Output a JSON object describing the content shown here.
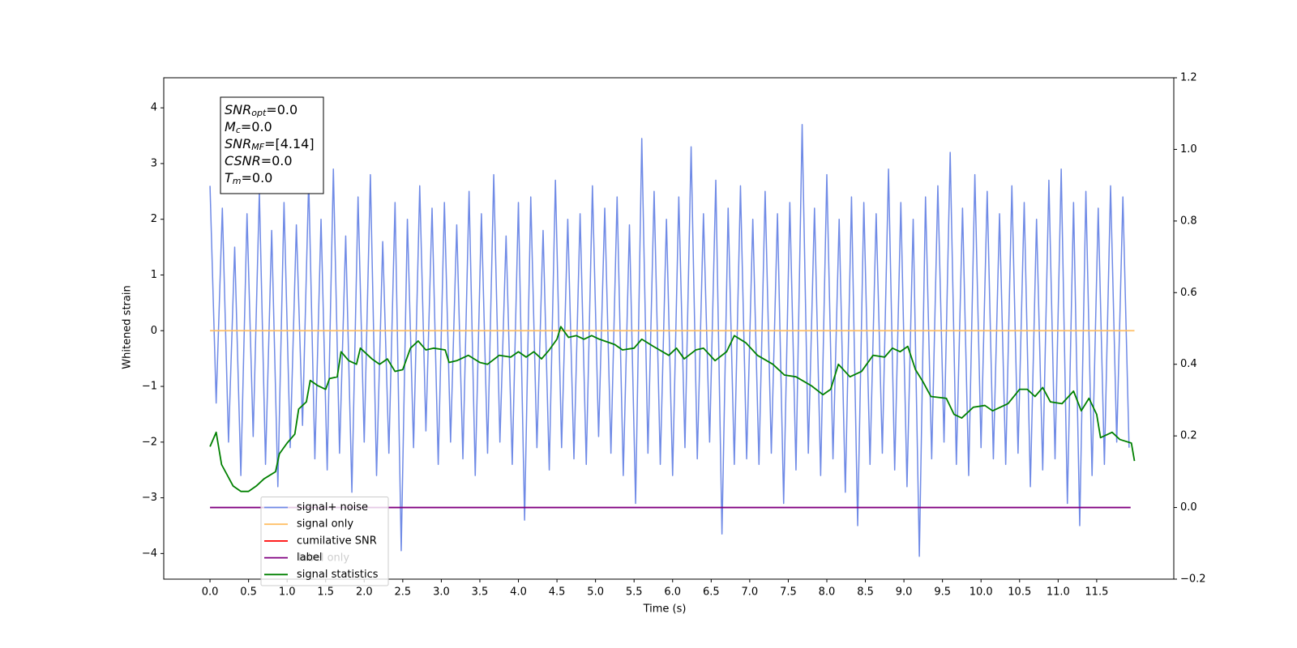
{
  "chart_data": {
    "type": "line",
    "xlabel": "Time (s)",
    "ylabel": "Whitened strain",
    "xlim": [
      -0.6,
      12.5
    ],
    "ylim": [
      -4.46,
      4.54
    ],
    "y2lim": [
      -0.2,
      1.2
    ],
    "xticks": [
      {
        "value": 0,
        "label": "0.0"
      },
      0.5,
      {
        "value": 1,
        "label": "1.0"
      },
      1.5,
      {
        "value": 2,
        "label": "2.0"
      },
      2.5,
      {
        "value": 3,
        "label": "3.0"
      },
      3.5,
      {
        "value": 4,
        "label": "4.0"
      },
      4.5,
      {
        "value": 5,
        "label": "5.0"
      },
      5.5,
      {
        "value": 6,
        "label": "6.0"
      },
      6.5,
      {
        "value": 7,
        "label": "7.0"
      },
      7.5,
      {
        "value": 8,
        "label": "8.0"
      },
      8.5,
      {
        "value": 9,
        "label": "9.0"
      },
      9.5,
      {
        "value": 10,
        "label": "10.0"
      },
      10.5,
      {
        "value": 11,
        "label": "11.0"
      },
      11.5
    ],
    "yticks": [
      {
        "value": -4,
        "label": "−4"
      },
      {
        "value": -3,
        "label": "−3"
      },
      {
        "value": -2,
        "label": "−2"
      },
      {
        "value": -1,
        "label": "−1"
      },
      0,
      1,
      2,
      3,
      4
    ],
    "y2ticks": [
      {
        "value": -0.2,
        "label": "−0.2"
      },
      {
        "value": 0,
        "label": "0.0"
      },
      0.2,
      0.4,
      0.6,
      0.8,
      {
        "value": 1,
        "label": "1.0"
      },
      1.2
    ],
    "grid": false,
    "legend": "lower left",
    "annotation_box": [
      {
        "main": "SNR",
        "sub": "opt",
        "rest": "=0.0"
      },
      {
        "main": "M",
        "sub": "c",
        "rest": "=0.0"
      },
      {
        "main": "SNR",
        "sub": "MF",
        "rest": "=[4.14]"
      },
      {
        "main": "CSNR",
        "rest": "=0.0"
      },
      {
        "main": "T",
        "sub": "m",
        "rest": "=0.0"
      }
    ],
    "hidden_text": "label only",
    "series": [
      {
        "name": "signal+ noise",
        "color": "#6f8ae6",
        "x": [
          0,
          0.08,
          0.16,
          0.24,
          0.32,
          0.4,
          0.48,
          0.56,
          0.64,
          0.72,
          0.8,
          0.88,
          0.96,
          1.04,
          1.12,
          1.2,
          1.28,
          1.36,
          1.44,
          1.52,
          1.6,
          1.68,
          1.76,
          1.84,
          1.92,
          2,
          2.08,
          2.16,
          2.24,
          2.32,
          2.4,
          2.48,
          2.56,
          2.64,
          2.72,
          2.8,
          2.88,
          2.96,
          3.04,
          3.12,
          3.2,
          3.28,
          3.36,
          3.44,
          3.52,
          3.6,
          3.68,
          3.76,
          3.84,
          3.92,
          4,
          4.08,
          4.16,
          4.24,
          4.32,
          4.4,
          4.48,
          4.56,
          4.64,
          4.72,
          4.8,
          4.88,
          4.96,
          5.04,
          5.12,
          5.2,
          5.28,
          5.36,
          5.44,
          5.52,
          5.6,
          5.68,
          5.76,
          5.84,
          5.92,
          6,
          6.08,
          6.16,
          6.24,
          6.32,
          6.4,
          6.48,
          6.56,
          6.64,
          6.72,
          6.8,
          6.88,
          6.96,
          7.04,
          7.12,
          7.2,
          7.28,
          7.36,
          7.44,
          7.52,
          7.6,
          7.68,
          7.76,
          7.84,
          7.92,
          8,
          8.08,
          8.16,
          8.24,
          8.32,
          8.4,
          8.48,
          8.56,
          8.64,
          8.72,
          8.8,
          8.88,
          8.96,
          9.04,
          9.12,
          9.2,
          9.28,
          9.36,
          9.44,
          9.52,
          9.6,
          9.68,
          9.76,
          9.84,
          9.92,
          10,
          10.08,
          10.16,
          10.24,
          10.32,
          10.4,
          10.48,
          10.56,
          10.64,
          10.72,
          10.8,
          10.88,
          10.96,
          11.04,
          11.12,
          11.2,
          11.28,
          11.36,
          11.44,
          11.52,
          11.6,
          11.68,
          11.76,
          11.84,
          11.92
        ],
        "values": [
          2.6,
          -1.3,
          2.2,
          -2.0,
          1.5,
          -2.6,
          2.1,
          -1.9,
          2.5,
          -2.4,
          1.8,
          -2.8,
          2.3,
          -2.1,
          1.9,
          -1.7,
          2.7,
          -2.3,
          2.0,
          -2.5,
          2.9,
          -2.2,
          1.7,
          -2.9,
          2.4,
          -2.0,
          2.8,
          -2.6,
          1.6,
          -2.2,
          2.3,
          -3.95,
          2.0,
          -2.1,
          2.6,
          -1.8,
          2.2,
          -2.4,
          2.3,
          -2.0,
          1.9,
          -2.3,
          2.5,
          -2.6,
          2.1,
          -2.2,
          2.8,
          -2.0,
          1.7,
          -2.4,
          2.3,
          -3.4,
          2.4,
          -2.1,
          1.8,
          -2.5,
          2.7,
          -2.1,
          2.0,
          -2.3,
          2.1,
          -2.4,
          2.6,
          -1.9,
          2.2,
          -2.2,
          2.4,
          -2.6,
          1.9,
          -3.1,
          3.45,
          -2.2,
          2.5,
          -2.4,
          2.0,
          -2.6,
          2.4,
          -2.1,
          3.3,
          -2.3,
          2.1,
          -2.0,
          2.7,
          -3.65,
          2.2,
          -2.4,
          2.6,
          -2.3,
          2.0,
          -2.4,
          2.5,
          -2.2,
          2.1,
          -3.1,
          2.3,
          -2.5,
          3.7,
          -2.2,
          2.2,
          -2.6,
          2.8,
          -2.3,
          2.0,
          -2.9,
          2.4,
          -3.5,
          2.3,
          -2.4,
          2.1,
          -2.2,
          2.9,
          -2.5,
          2.3,
          -2.8,
          2.0,
          -4.05,
          2.4,
          -2.3,
          2.6,
          -2.0,
          3.2,
          -2.4,
          2.2,
          -2.6,
          2.8,
          -2.1,
          2.5,
          -2.3,
          2.1,
          -2.4,
          2.6,
          -2.2,
          2.3,
          -2.8,
          2.0,
          -2.5,
          2.7,
          -2.3,
          2.9,
          -3.1,
          2.3,
          -3.5,
          2.5,
          -2.6,
          2.2,
          -2.4,
          2.6,
          -2.0,
          2.4,
          -2.1
        ]
      },
      {
        "name": "signal only",
        "color": "#ffbf66",
        "x": [
          0,
          11.99
        ],
        "values": [
          0,
          0
        ]
      },
      {
        "name": "cumilative SNR",
        "color": "#ff0000"
      },
      {
        "name": "label",
        "color": "#800080",
        "axis": "y2",
        "x": [
          0,
          11.94
        ],
        "values": [
          0,
          0
        ]
      },
      {
        "name": "signal statistics",
        "color": "#008000",
        "axis": "y2",
        "x": [
          0,
          0.08,
          0.15,
          0.3,
          0.4,
          0.5,
          0.6,
          0.7,
          0.85,
          0.9,
          1.0,
          1.1,
          1.15,
          1.25,
          1.3,
          1.4,
          1.5,
          1.55,
          1.65,
          1.7,
          1.8,
          1.9,
          1.95,
          2.1,
          2.2,
          2.3,
          2.4,
          2.5,
          2.6,
          2.7,
          2.8,
          2.9,
          3.05,
          3.1,
          3.2,
          3.35,
          3.5,
          3.6,
          3.75,
          3.9,
          4.0,
          4.1,
          4.2,
          4.3,
          4.4,
          4.5,
          4.55,
          4.65,
          4.75,
          4.85,
          4.95,
          5.05,
          5.25,
          5.35,
          5.5,
          5.6,
          5.75,
          5.95,
          6.05,
          6.15,
          6.3,
          6.4,
          6.55,
          6.7,
          6.8,
          6.95,
          7.1,
          7.3,
          7.45,
          7.6,
          7.8,
          7.95,
          8.05,
          8.15,
          8.3,
          8.45,
          8.6,
          8.75,
          8.85,
          8.95,
          9.05,
          9.15,
          9.25,
          9.35,
          9.55,
          9.65,
          9.75,
          9.9,
          10.05,
          10.15,
          10.35,
          10.5,
          10.6,
          10.7,
          10.8,
          10.9,
          11.05,
          11.2,
          11.3,
          11.4,
          11.5,
          11.55,
          11.7,
          11.8,
          11.95,
          11.99
        ],
        "values": [
          0.17,
          0.21,
          0.12,
          0.06,
          0.045,
          0.045,
          0.06,
          0.08,
          0.1,
          0.15,
          0.18,
          0.205,
          0.275,
          0.295,
          0.355,
          0.34,
          0.33,
          0.36,
          0.365,
          0.435,
          0.41,
          0.4,
          0.445,
          0.415,
          0.4,
          0.415,
          0.38,
          0.385,
          0.445,
          0.465,
          0.44,
          0.445,
          0.44,
          0.405,
          0.41,
          0.425,
          0.405,
          0.4,
          0.425,
          0.42,
          0.435,
          0.42,
          0.435,
          0.415,
          0.44,
          0.47,
          0.505,
          0.475,
          0.48,
          0.47,
          0.48,
          0.47,
          0.455,
          0.44,
          0.445,
          0.47,
          0.45,
          0.425,
          0.445,
          0.415,
          0.44,
          0.445,
          0.41,
          0.435,
          0.48,
          0.46,
          0.425,
          0.4,
          0.37,
          0.365,
          0.34,
          0.315,
          0.33,
          0.4,
          0.365,
          0.38,
          0.425,
          0.42,
          0.445,
          0.435,
          0.45,
          0.385,
          0.35,
          0.31,
          0.305,
          0.26,
          0.25,
          0.28,
          0.285,
          0.27,
          0.29,
          0.33,
          0.33,
          0.31,
          0.335,
          0.295,
          0.29,
          0.325,
          0.27,
          0.305,
          0.26,
          0.195,
          0.21,
          0.19,
          0.18,
          0.13
        ]
      }
    ]
  }
}
